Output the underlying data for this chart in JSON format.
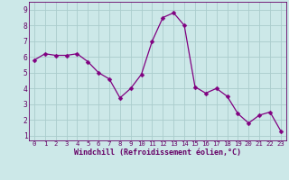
{
  "x": [
    0,
    1,
    2,
    3,
    4,
    5,
    6,
    7,
    8,
    9,
    10,
    11,
    12,
    13,
    14,
    15,
    16,
    17,
    18,
    19,
    20,
    21,
    22,
    23
  ],
  "y": [
    5.8,
    6.2,
    6.1,
    6.1,
    6.2,
    5.7,
    5.0,
    4.6,
    3.4,
    4.0,
    4.9,
    7.0,
    8.5,
    8.8,
    8.0,
    4.1,
    3.7,
    4.0,
    3.5,
    2.4,
    1.8,
    2.3,
    2.5,
    1.3
  ],
  "line_color": "#800080",
  "marker_color": "#800080",
  "bg_color": "#cce8e8",
  "grid_color": "#aacccc",
  "xlabel": "Windchill (Refroidissement éolien,°C)",
  "xlim": [
    -0.5,
    23.5
  ],
  "ylim": [
    0.7,
    9.5
  ],
  "yticks": [
    1,
    2,
    3,
    4,
    5,
    6,
    7,
    8,
    9
  ],
  "xticks": [
    0,
    1,
    2,
    3,
    4,
    5,
    6,
    7,
    8,
    9,
    10,
    11,
    12,
    13,
    14,
    15,
    16,
    17,
    18,
    19,
    20,
    21,
    22,
    23
  ],
  "marker_size": 2.5,
  "line_width": 0.9,
  "label_color": "#660066",
  "tick_label_color": "#660066",
  "axis_color": "#660066",
  "xlabel_fontsize": 6.0,
  "tick_fontsize_x": 5.2,
  "tick_fontsize_y": 5.8
}
